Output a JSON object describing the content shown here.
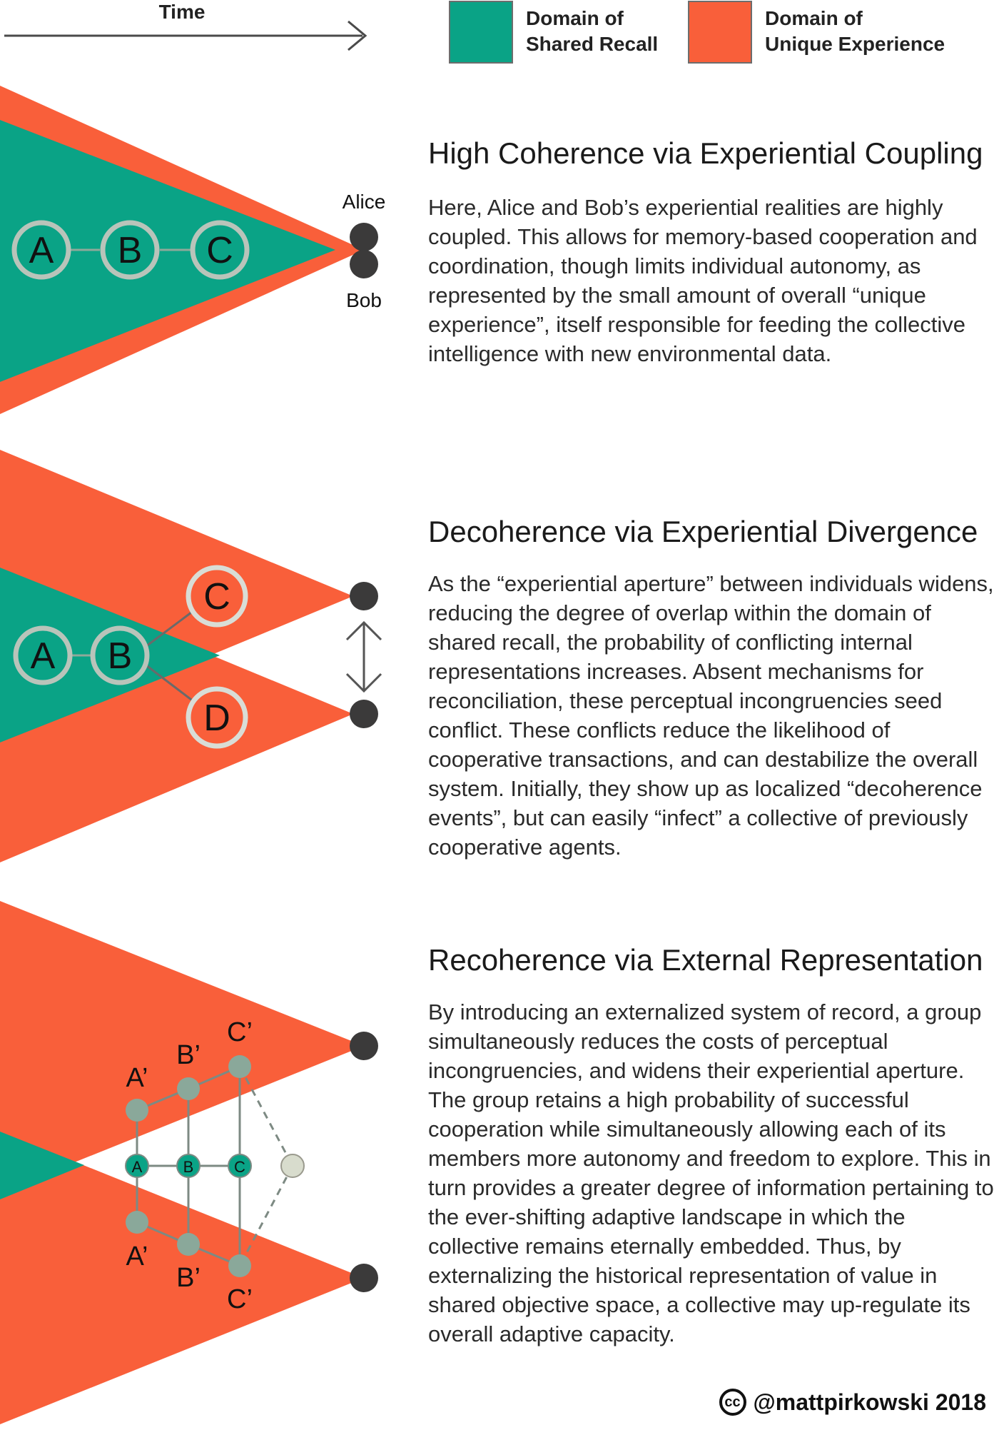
{
  "header": {
    "time_label": "Time"
  },
  "legend": {
    "items": [
      {
        "label_line1": "Domain of",
        "label_line2": "Shared Recall",
        "color": "#0aa386"
      },
      {
        "label_line1": "Domain of",
        "label_line2": "Unique Experience",
        "color": "#f95f3a"
      }
    ]
  },
  "colors": {
    "shared_recall": "#0aa386",
    "unique_experience": "#f95f3a",
    "node_ring": "#b9c4ba",
    "small_node": "#8aa89a",
    "ghost_node": "#d8dccd",
    "person_dot": "#3b3a3a"
  },
  "panels": [
    {
      "title": "High Coherence via Experiential Coupling",
      "body": "Here, Alice and Bob’s experiential realities are highly coupled. This allows for memory-based cooperation and coordination, though limits individual autonomy, as represented by the small amount of overall “unique experience”, itself responsible for feeding the collective intelligence with new environmental data.",
      "people": [
        "Alice",
        "Bob"
      ],
      "nodes": [
        "A",
        "B",
        "C"
      ]
    },
    {
      "title": "Decoherence via Experiential Divergence",
      "body": "As the “experiential aperture” between individuals widens, reducing the degree of overlap within the domain of shared recall, the probability of conflicting internal representations increases. Absent mechanisms for reconciliation, these perceptual incongruencies seed conflict. These conflicts reduce the likelihood of cooperative transactions, and can destabilize the overall system. Initially, they show up as localized “decoherence events”, but can easily “infect” a collective of previously cooperative agents.",
      "nodes": [
        "A",
        "B",
        "C",
        "D"
      ]
    },
    {
      "title": "Recoherence via External Representation",
      "body": "By introducing an externalized system of record, a group simultaneously reduces the costs of perceptual incongruencies, and widens their experiential aperture. The group retains a high probability of successful cooperation while simultaneously allowing each of its members more autonomy and freedom to explore. This in turn provides a greater degree of information pertaining to the ever-shifting adaptive landscape in which the collective remains eternally embedded. Thus, by externalizing the historical representation of value in shared objective space, a collective may up-regulate its overall adaptive capacity.",
      "shared_nodes": [
        "A",
        "B",
        "C"
      ],
      "upper_nodes": [
        "A’",
        "B’",
        "C’"
      ],
      "lower_nodes": [
        "A’",
        "B’",
        "C’"
      ]
    }
  ],
  "footer": {
    "cc_label": "cc",
    "credit": "@mattpirkowski 2018"
  }
}
